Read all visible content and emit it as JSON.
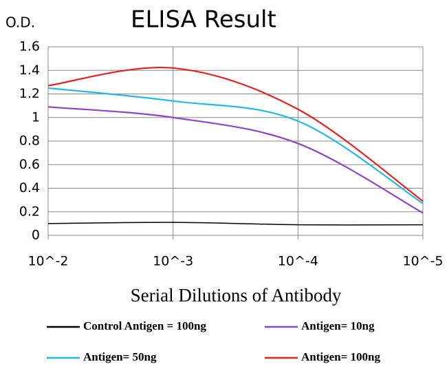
{
  "chart_data": {
    "type": "line",
    "title": "ELISA Result",
    "y_label": "O.D.",
    "x_label": "Serial Dilutions of Antibody",
    "categories": [
      "10^-2",
      "10^-3",
      "10^-4",
      "10^-5"
    ],
    "series": [
      {
        "name": "Control Antigen = 100ng",
        "color": "#000000",
        "values": [
          0.1,
          0.11,
          0.09,
          0.09
        ]
      },
      {
        "name": "Antigen= 10ng",
        "color": "#8e44c8",
        "values": [
          1.09,
          1.0,
          0.78,
          0.19
        ]
      },
      {
        "name": "Antigen= 50ng",
        "color": "#1fb8e8",
        "values": [
          1.25,
          1.14,
          0.97,
          0.27
        ]
      },
      {
        "name": "Antigen= 100ng",
        "color": "#e8201c",
        "values": [
          1.27,
          1.42,
          1.07,
          0.29
        ]
      }
    ],
    "ylim": [
      0,
      1.6
    ],
    "yticks": [
      0,
      0.2,
      0.4,
      0.6,
      0.8,
      1,
      1.2,
      1.4,
      1.6
    ],
    "grid": true
  }
}
